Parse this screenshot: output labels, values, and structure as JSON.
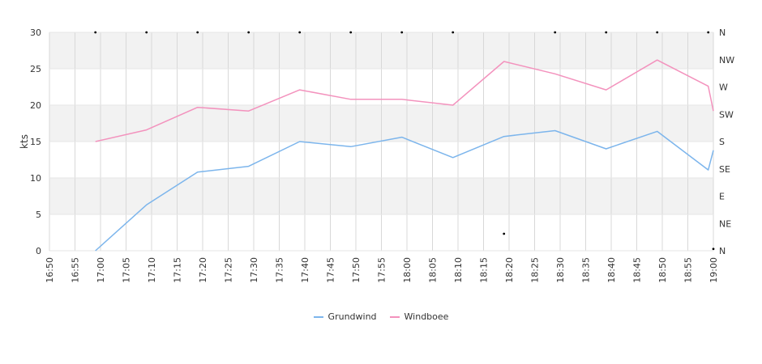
{
  "chart_data": {
    "type": "line",
    "title": "",
    "ylabel": "kts",
    "ylim": [
      0,
      30
    ],
    "y_ticks": [
      "0",
      "5",
      "10",
      "15",
      "20",
      "25",
      "30"
    ],
    "x_ticks": [
      "16:50",
      "16:55",
      "17:00",
      "17:05",
      "17:10",
      "17:15",
      "17:20",
      "17:25",
      "17:30",
      "17:35",
      "17:40",
      "17:45",
      "17:50",
      "17:55",
      "18:00",
      "18:05",
      "18:10",
      "18:15",
      "18:20",
      "18:25",
      "18:30",
      "18:35",
      "18:40",
      "18:45",
      "18:50",
      "18:55",
      "19:00"
    ],
    "xlim": [
      "16:50",
      "19:00"
    ],
    "right_axis_ticks": [
      "N",
      "NE",
      "E",
      "SE",
      "S",
      "SW",
      "W",
      "NW",
      "N"
    ],
    "right_axis_range": [
      0,
      360
    ],
    "grid": true,
    "legend_position": "bottom-center",
    "series": [
      {
        "name": "Grundwind",
        "color": "#7cb5ec",
        "points": [
          [
            "16:59",
            0
          ],
          [
            "17:09",
            6.3
          ],
          [
            "17:19",
            10.8
          ],
          [
            "17:29",
            11.6
          ],
          [
            "17:39",
            15.0
          ],
          [
            "17:49",
            14.3
          ],
          [
            "17:59",
            15.6
          ],
          [
            "18:09",
            12.8
          ],
          [
            "18:19",
            15.7
          ],
          [
            "18:29",
            16.5
          ],
          [
            "18:39",
            14.0
          ],
          [
            "18:49",
            16.4
          ],
          [
            "18:59",
            11.1
          ],
          [
            "19:00",
            13.8
          ]
        ]
      },
      {
        "name": "Windboee",
        "color": "#f392bd",
        "points": [
          [
            "16:59",
            15.0
          ],
          [
            "17:09",
            16.6
          ],
          [
            "17:19",
            19.7
          ],
          [
            "17:29",
            19.2
          ],
          [
            "17:39",
            22.1
          ],
          [
            "17:49",
            20.8
          ],
          [
            "17:59",
            20.8
          ],
          [
            "18:09",
            20.0
          ],
          [
            "18:19",
            26.0
          ],
          [
            "18:29",
            24.3
          ],
          [
            "18:39",
            22.1
          ],
          [
            "18:49",
            26.2
          ],
          [
            "18:59",
            22.6
          ],
          [
            "19:00",
            19.2
          ]
        ]
      },
      {
        "name": "",
        "type": "scatter",
        "color": "#000000",
        "points": [
          [
            "16:59",
            360
          ],
          [
            "17:09",
            360
          ],
          [
            "17:19",
            360
          ],
          [
            "17:29",
            360
          ],
          [
            "17:39",
            360
          ],
          [
            "17:49",
            360
          ],
          [
            "17:59",
            360
          ],
          [
            "18:09",
            360
          ],
          [
            "18:19",
            28
          ],
          [
            "18:29",
            360
          ],
          [
            "18:39",
            360
          ],
          [
            "18:49",
            360
          ],
          [
            "18:59",
            360
          ],
          [
            "19:00",
            3
          ]
        ]
      }
    ]
  }
}
